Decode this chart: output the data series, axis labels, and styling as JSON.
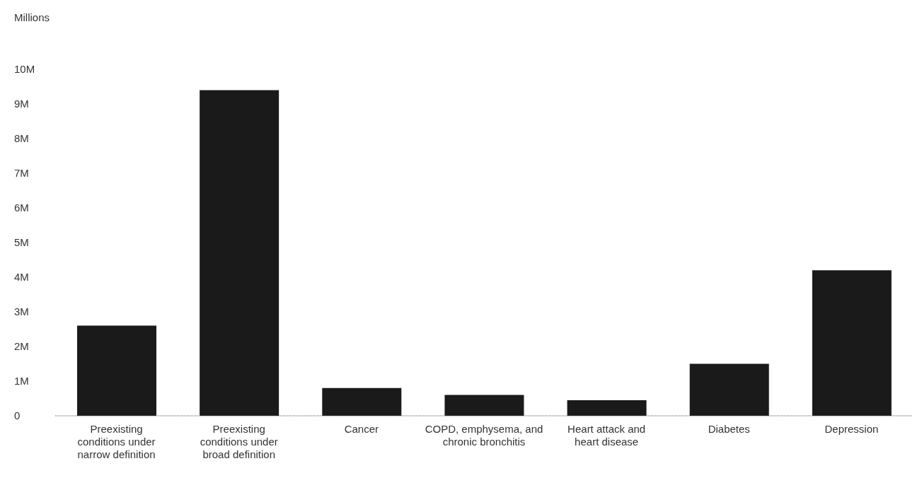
{
  "chart_data": {
    "type": "bar",
    "ylabel": "Millions",
    "categories": [
      "Preexisting conditions under narrow definition",
      "Preexisting conditions under broad definition",
      "Cancer",
      "COPD, emphysema, and chronic bronchitis",
      "Heart attack and heart disease",
      "Diabetes",
      "Depression"
    ],
    "values": [
      2.6,
      9.4,
      0.8,
      0.6,
      0.45,
      1.5,
      4.2
    ],
    "color": "#1a1a1a",
    "ylim": [
      0,
      10
    ],
    "yticks": [
      {
        "value": 0,
        "label": "0"
      },
      {
        "value": 1,
        "label": "1M"
      },
      {
        "value": 2,
        "label": "2M"
      },
      {
        "value": 3,
        "label": "3M"
      },
      {
        "value": 4,
        "label": "4M"
      },
      {
        "value": 5,
        "label": "5M"
      },
      {
        "value": 6,
        "label": "6M"
      },
      {
        "value": 7,
        "label": "7M"
      },
      {
        "value": 8,
        "label": "8M"
      },
      {
        "value": 9,
        "label": "9M"
      },
      {
        "value": 10,
        "label": "10M"
      }
    ],
    "grid": false,
    "legend": false
  }
}
